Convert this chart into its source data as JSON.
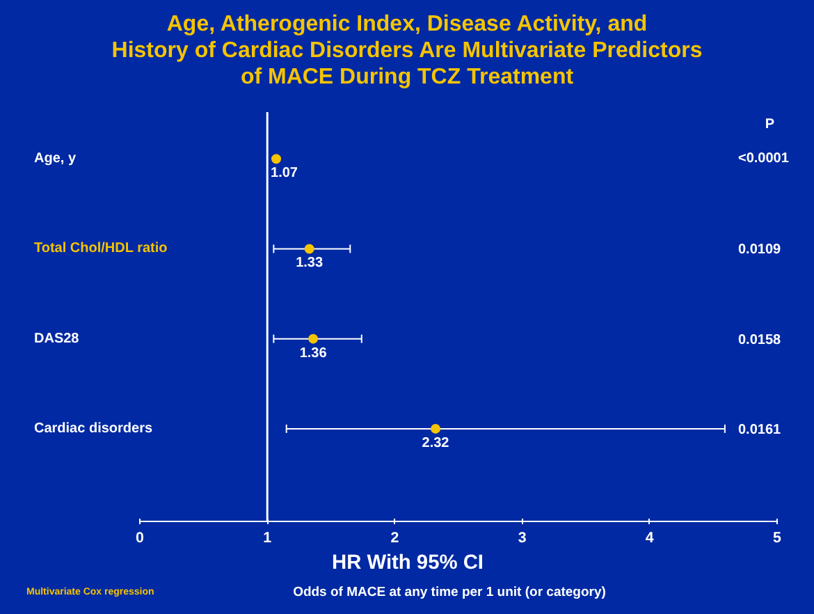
{
  "chart_data": {
    "type": "scatter",
    "orientation": "horizontal",
    "title": "Age, Atherogenic Index, Disease Activity, and\nHistory of Cardiac Disorders Are Multivariate Predictors\nof MACE During TCZ Treatment",
    "categories": [
      "Age, y",
      "Total Chol/HDL ratio",
      "DAS28",
      "Cardiac disorders"
    ],
    "values": [
      1.07,
      1.33,
      1.36,
      2.32
    ],
    "errors": [
      null,
      [
        1.05,
        1.65
      ],
      [
        1.05,
        1.74
      ],
      [
        1.15,
        4.59
      ]
    ],
    "color": "#f5c400",
    "data_labels": true,
    "marker": "circle",
    "xlabel": "HR With 95% CI",
    "xlim": [
      0,
      5
    ],
    "xticks": [
      0,
      1,
      2,
      3,
      4,
      5
    ],
    "ref_lines": [
      {
        "axis": "x",
        "value": 1,
        "color": "#ffffff"
      }
    ],
    "grid": false,
    "annotations": [
      "P",
      "<0.0001",
      "0.0109",
      "0.0158",
      "0.0161",
      "Odds of MACE at any time per 1 unit (or category)",
      "Multivariate Cox regression"
    ]
  }
}
